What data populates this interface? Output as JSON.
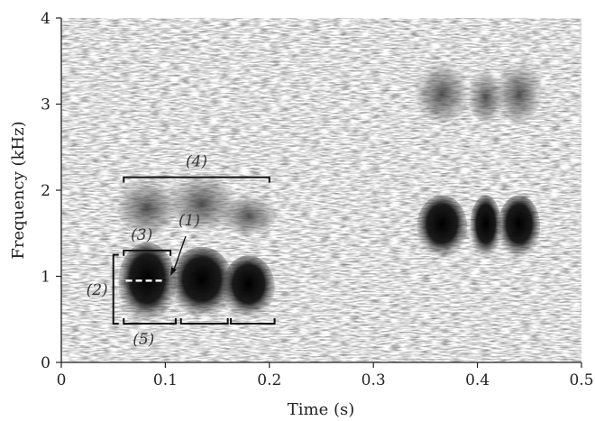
{
  "chart_data": {
    "type": "heatmap",
    "subtype": "spectrogram",
    "title": "",
    "xlabel": "Time (s)",
    "ylabel": "Frequency (kHz)",
    "xlim": [
      0,
      0.5
    ],
    "ylim": [
      0,
      4
    ],
    "x_ticks": [
      "0",
      "0.1",
      "0.2",
      "0.3",
      "0.4",
      "0.5"
    ],
    "y_ticks": [
      "0",
      "1",
      "2",
      "3",
      "4"
    ],
    "colormap": "grayscale",
    "background_color": "#ffffff",
    "ink_color": "#111111",
    "calls": [
      {
        "group": "call-1",
        "t_start": 0.06,
        "t_end": 0.105,
        "f_low": 0.5,
        "f_high": 1.35,
        "harmonic_f_low": 1.55,
        "harmonic_f_high": 2.1
      },
      {
        "group": "call-1",
        "t_start": 0.11,
        "t_end": 0.16,
        "f_low": 0.55,
        "f_high": 1.3,
        "harmonic_f_low": 1.6,
        "harmonic_f_high": 2.15
      },
      {
        "group": "call-1",
        "t_start": 0.16,
        "t_end": 0.2,
        "f_low": 0.55,
        "f_high": 1.2,
        "harmonic_f_low": 1.55,
        "harmonic_f_high": 1.9
      },
      {
        "group": "call-2",
        "t_start": 0.347,
        "t_end": 0.385,
        "f_low": 1.25,
        "f_high": 1.9,
        "harmonic_f_low": 2.85,
        "harmonic_f_high": 3.45
      },
      {
        "group": "call-2",
        "t_start": 0.398,
        "t_end": 0.418,
        "f_low": 1.25,
        "f_high": 1.9,
        "harmonic_f_low": 2.85,
        "harmonic_f_high": 3.35
      },
      {
        "group": "call-2",
        "t_start": 0.425,
        "t_end": 0.455,
        "f_low": 1.25,
        "f_high": 1.9,
        "harmonic_f_low": 2.85,
        "harmonic_f_high": 3.45
      }
    ],
    "annotations": [
      {
        "label": "(1)",
        "meaning_mark": "dashed-line",
        "t": [
          0.062,
          0.1
        ],
        "f": 0.95
      },
      {
        "label": "(2)",
        "meaning_mark": "vertical-bracket",
        "t": 0.05,
        "f": [
          0.45,
          1.25
        ]
      },
      {
        "label": "(3)",
        "meaning_mark": "horizontal-bracket",
        "t": [
          0.06,
          0.105
        ],
        "f": 1.3
      },
      {
        "label": "(4)",
        "meaning_mark": "horizontal-bracket",
        "t": [
          0.06,
          0.2
        ],
        "f": 2.15
      },
      {
        "label": "(5)",
        "meaning_mark": "horizontal-bracket-set",
        "segments": [
          [
            0.06,
            0.11
          ],
          [
            0.115,
            0.16
          ],
          [
            0.163,
            0.205
          ]
        ],
        "f": 0.45
      }
    ]
  }
}
